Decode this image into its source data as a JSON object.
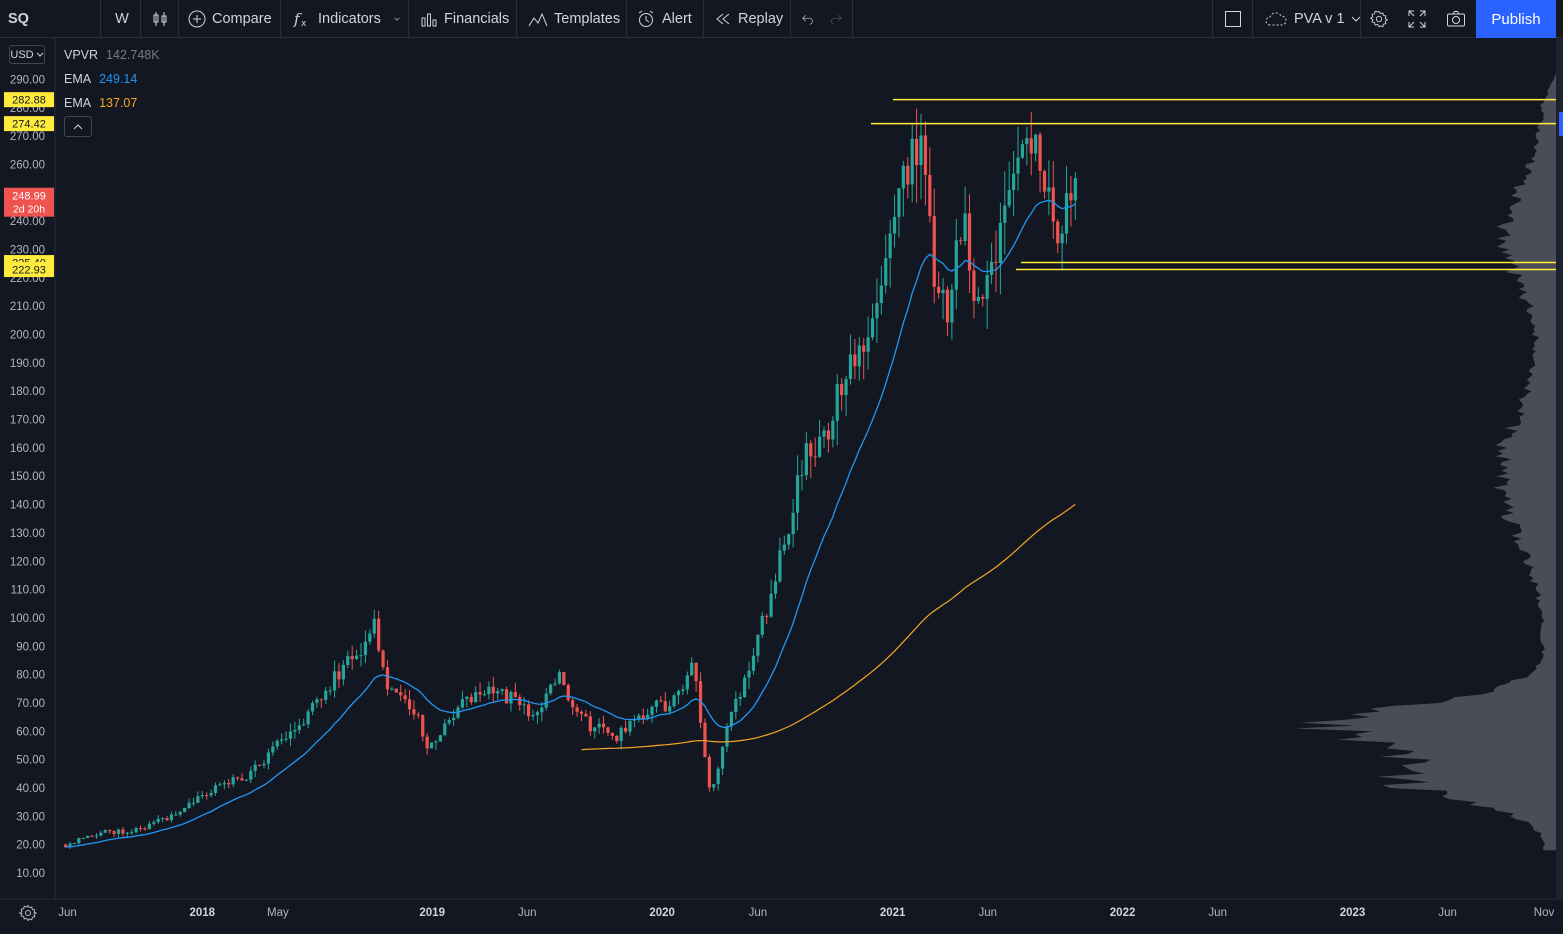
{
  "toolbar": {
    "symbol": "SQ",
    "interval": "W",
    "compare_label": "Compare",
    "indicators_label": "Indicators",
    "financials_label": "Financials",
    "templates_label": "Templates",
    "alert_label": "Alert",
    "replay_label": "Replay",
    "layout_label": "PVA v 1",
    "publish_label": "Publish"
  },
  "legend": {
    "vpvr": {
      "name": "VPVR",
      "value": "142.748K"
    },
    "ema_fast": {
      "name": "EMA",
      "value": "249.14"
    },
    "ema_slow": {
      "name": "EMA",
      "value": "137.07"
    }
  },
  "currency": "USD",
  "colors": {
    "background": "#131722",
    "up": "#26a69a",
    "down": "#ef5350",
    "ema_fast": "#2196f3",
    "ema_slow": "#f5a623",
    "level_line": "#ffeb3b",
    "volume_profile": "#5d606b",
    "price_badge": "#ef5350",
    "publish": "#2962ff"
  },
  "chart_data": {
    "type": "candlestick",
    "symbol": "SQ",
    "interval": "W",
    "ylim": [
      0,
      300
    ],
    "y_ticks": [
      10,
      20,
      30,
      40,
      50,
      60,
      70,
      80,
      90,
      100,
      110,
      120,
      130,
      140,
      150,
      160,
      170,
      180,
      190,
      200,
      210,
      220,
      230,
      240,
      250,
      260,
      270,
      280,
      290
    ],
    "x_ticks": [
      "Jun",
      "2018",
      "May",
      "2019",
      "Jun",
      "2020",
      "Jun",
      "2021",
      "Jun",
      "2022",
      "Jun",
      "2023",
      "Jun",
      "Nov"
    ],
    "last_price": "248.99",
    "countdown": "2d 20h",
    "ema_fast_last": 249.14,
    "ema_slow_last": 137.07,
    "levels": [
      {
        "label": "282.88",
        "value": 282.88
      },
      {
        "label": "274.42",
        "value": 274.42
      },
      {
        "label": "225.40",
        "value": 225.4
      },
      {
        "label": "222.93",
        "value": 222.93
      }
    ],
    "price_path": [
      [
        "2017-05-29",
        20
      ],
      [
        "2017-07-15",
        24
      ],
      [
        "2017-09-15",
        25
      ],
      [
        "2017-11-15",
        30
      ],
      [
        "2017-12-20",
        36
      ],
      [
        "2018-02-10",
        42
      ],
      [
        "2018-03-15",
        44
      ],
      [
        "2018-05-01",
        55
      ],
      [
        "2018-06-15",
        65
      ],
      [
        "2018-08-01",
        80
      ],
      [
        "2018-09-20",
        92
      ],
      [
        "2018-10-01",
        98
      ],
      [
        "2018-10-20",
        78
      ],
      [
        "2018-12-10",
        65
      ],
      [
        "2018-12-24",
        52
      ],
      [
        "2019-01-20",
        62
      ],
      [
        "2019-02-20",
        70
      ],
      [
        "2019-04-01",
        74
      ],
      [
        "2019-05-15",
        71
      ],
      [
        "2019-06-15",
        65
      ],
      [
        "2019-07-20",
        80
      ],
      [
        "2019-08-15",
        65
      ],
      [
        "2019-09-20",
        61
      ],
      [
        "2019-10-20",
        58
      ],
      [
        "2019-11-20",
        66
      ],
      [
        "2020-01-15",
        70
      ],
      [
        "2020-02-20",
        83
      ],
      [
        "2020-03-18",
        38
      ],
      [
        "2020-04-15",
        62
      ],
      [
        "2020-05-15",
        80
      ],
      [
        "2020-06-10",
        100
      ],
      [
        "2020-07-05",
        120
      ],
      [
        "2020-08-10",
        155
      ],
      [
        "2020-09-10",
        160
      ],
      [
        "2020-10-10",
        180
      ],
      [
        "2020-11-01",
        190
      ],
      [
        "2020-12-01",
        210
      ],
      [
        "2020-12-28",
        240
      ],
      [
        "2021-02-15",
        275
      ],
      [
        "2021-03-10",
        220
      ],
      [
        "2021-03-25",
        205
      ],
      [
        "2021-04-25",
        245
      ],
      [
        "2021-05-15",
        205
      ],
      [
        "2021-06-05",
        220
      ],
      [
        "2021-07-01",
        250
      ],
      [
        "2021-08-05",
        275
      ],
      [
        "2021-08-25",
        265
      ],
      [
        "2021-09-20",
        240
      ],
      [
        "2021-10-20",
        250
      ]
    ],
    "volume_profile_peak_price": 62
  }
}
